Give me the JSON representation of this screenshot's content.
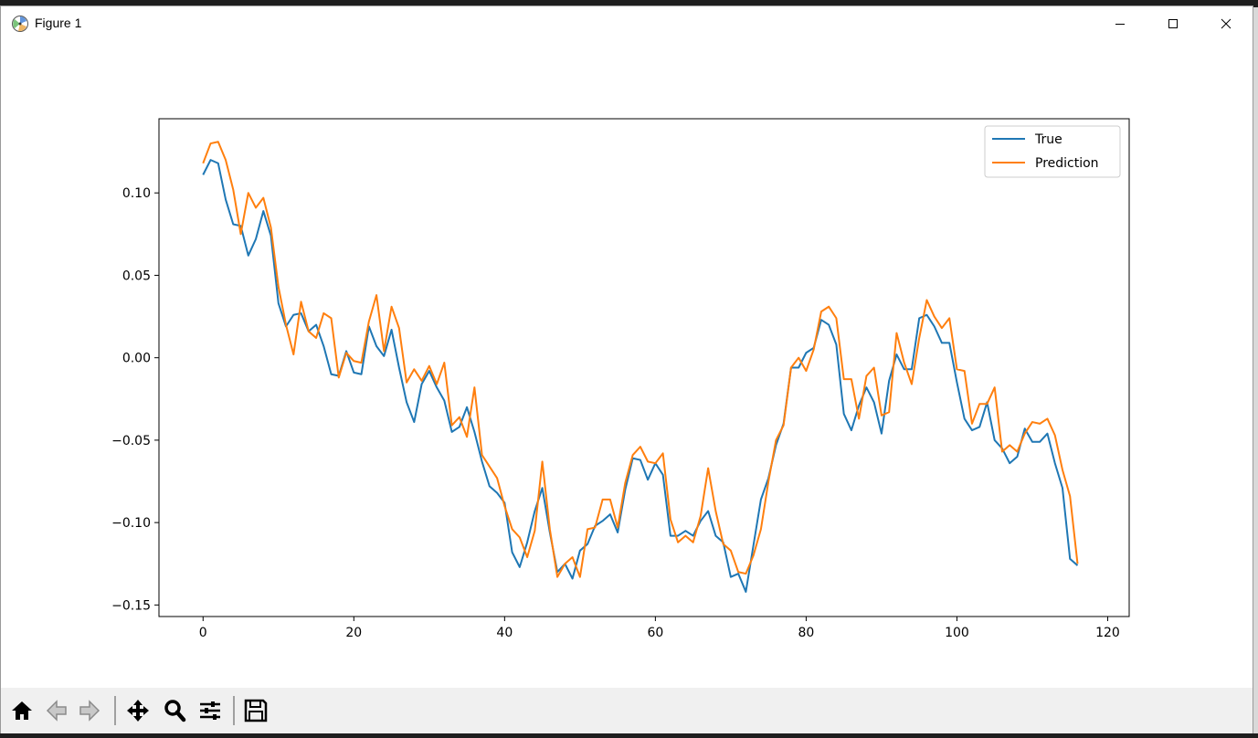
{
  "window": {
    "title": "Figure 1",
    "controls": [
      "minimize",
      "maximize",
      "close"
    ]
  },
  "toolbar": {
    "buttons": [
      {
        "name": "home-icon",
        "label": "Home"
      },
      {
        "name": "back-arrow-icon",
        "label": "Back"
      },
      {
        "name": "forward-arrow-icon",
        "label": "Forward"
      },
      {
        "name": "pan-move-icon",
        "label": "Pan"
      },
      {
        "name": "zoom-magnifier-icon",
        "label": "Zoom"
      },
      {
        "name": "configure-subplots-icon",
        "label": "Subplots"
      },
      {
        "name": "save-floppy-icon",
        "label": "Save"
      }
    ]
  },
  "chart_data": {
    "type": "line",
    "title": "",
    "xlabel": "",
    "ylabel": "",
    "xlim": [
      -5.85,
      122.85
    ],
    "ylim": [
      -0.157,
      0.145
    ],
    "xticks": [
      0,
      20,
      40,
      60,
      80,
      100,
      120
    ],
    "xtick_labels": [
      "0",
      "20",
      "40",
      "60",
      "80",
      "100",
      "120"
    ],
    "yticks": [
      0.1,
      0.05,
      0.0,
      -0.05,
      -0.1,
      -0.15
    ],
    "ytick_labels": [
      "0.10",
      "0.05",
      "0.00",
      "−0.05",
      "−0.10",
      "−0.15"
    ],
    "grid": false,
    "legend": "upper right",
    "colors": {
      "True": "#1f77b4",
      "Prediction": "#ff7f0e"
    },
    "series": [
      {
        "name": "True",
        "values": [
          0.111,
          0.12,
          0.118,
          0.096,
          0.081,
          0.08,
          0.062,
          0.072,
          0.089,
          0.074,
          0.033,
          0.019,
          0.026,
          0.027,
          0.016,
          0.02,
          0.007,
          -0.01,
          -0.011,
          0.004,
          -0.009,
          -0.01,
          0.019,
          0.007,
          0.001,
          0.017,
          -0.006,
          -0.027,
          -0.039,
          -0.016,
          -0.008,
          -0.018,
          -0.026,
          -0.045,
          -0.042,
          -0.03,
          -0.045,
          -0.063,
          -0.078,
          -0.082,
          -0.088,
          -0.118,
          -0.127,
          -0.112,
          -0.093,
          -0.079,
          -0.106,
          -0.13,
          -0.125,
          -0.134,
          -0.117,
          -0.113,
          -0.102,
          -0.099,
          -0.095,
          -0.106,
          -0.08,
          -0.061,
          -0.062,
          -0.074,
          -0.064,
          -0.071,
          -0.108,
          -0.108,
          -0.105,
          -0.108,
          -0.099,
          -0.093,
          -0.108,
          -0.112,
          -0.133,
          -0.131,
          -0.142,
          -0.114,
          -0.086,
          -0.073,
          -0.053,
          -0.04,
          -0.006,
          -0.006,
          0.003,
          0.006,
          0.023,
          0.02,
          0.008,
          -0.034,
          -0.044,
          -0.029,
          -0.018,
          -0.027,
          -0.046,
          -0.014,
          0.002,
          -0.007,
          -0.007,
          0.024,
          0.026,
          0.019,
          0.009,
          0.009,
          -0.015,
          -0.037,
          -0.044,
          -0.042,
          -0.027,
          -0.05,
          -0.055,
          -0.064,
          -0.06,
          -0.043,
          -0.051,
          -0.051,
          -0.046,
          -0.064,
          -0.079,
          -0.122,
          -0.126
        ]
      },
      {
        "name": "Prediction",
        "values": [
          0.118,
          0.13,
          0.131,
          0.12,
          0.102,
          0.075,
          0.1,
          0.091,
          0.097,
          0.079,
          0.043,
          0.02,
          0.002,
          0.034,
          0.016,
          0.012,
          0.027,
          0.024,
          -0.012,
          0.003,
          -0.002,
          -0.003,
          0.022,
          0.038,
          0.004,
          0.031,
          0.018,
          -0.015,
          -0.007,
          -0.014,
          -0.005,
          -0.016,
          -0.003,
          -0.041,
          -0.036,
          -0.048,
          -0.018,
          -0.059,
          -0.066,
          -0.073,
          -0.09,
          -0.104,
          -0.109,
          -0.121,
          -0.105,
          -0.063,
          -0.104,
          -0.133,
          -0.125,
          -0.121,
          -0.133,
          -0.104,
          -0.103,
          -0.086,
          -0.086,
          -0.103,
          -0.076,
          -0.059,
          -0.054,
          -0.063,
          -0.064,
          -0.058,
          -0.098,
          -0.112,
          -0.108,
          -0.112,
          -0.096,
          -0.067,
          -0.093,
          -0.113,
          -0.117,
          -0.13,
          -0.131,
          -0.12,
          -0.104,
          -0.075,
          -0.05,
          -0.041,
          -0.006,
          0.0,
          -0.008,
          0.005,
          0.028,
          0.031,
          0.024,
          -0.013,
          -0.013,
          -0.037,
          -0.011,
          -0.006,
          -0.035,
          -0.033,
          0.015,
          -0.003,
          -0.016,
          0.012,
          0.035,
          0.025,
          0.018,
          0.024,
          -0.007,
          -0.008,
          -0.04,
          -0.028,
          -0.028,
          -0.018,
          -0.057,
          -0.053,
          -0.057,
          -0.046,
          -0.039,
          -0.04,
          -0.037,
          -0.047,
          -0.068,
          -0.084,
          -0.125
        ]
      }
    ]
  }
}
